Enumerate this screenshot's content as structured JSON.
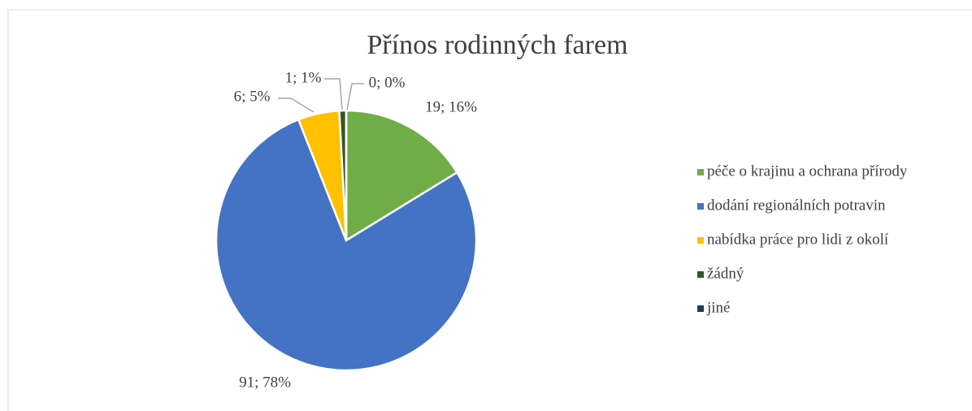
{
  "chart_data": {
    "type": "pie",
    "title": "Přínos rodinných farem",
    "categories": [
      "péče o krajinu a ochrana přírody",
      "dodání regionálních potravin",
      "nabídka práce pro lidi z okolí",
      "žádný",
      "jiné"
    ],
    "values": [
      19,
      91,
      6,
      1,
      0
    ],
    "value_labels": [
      "19; 16%",
      "91; 78%",
      "6; 5%",
      "1; 1%",
      "0; 0%"
    ],
    "colors": [
      "#70ad47",
      "#4472c4",
      "#ffc000",
      "#375623",
      "#203864"
    ],
    "legend": "right"
  }
}
